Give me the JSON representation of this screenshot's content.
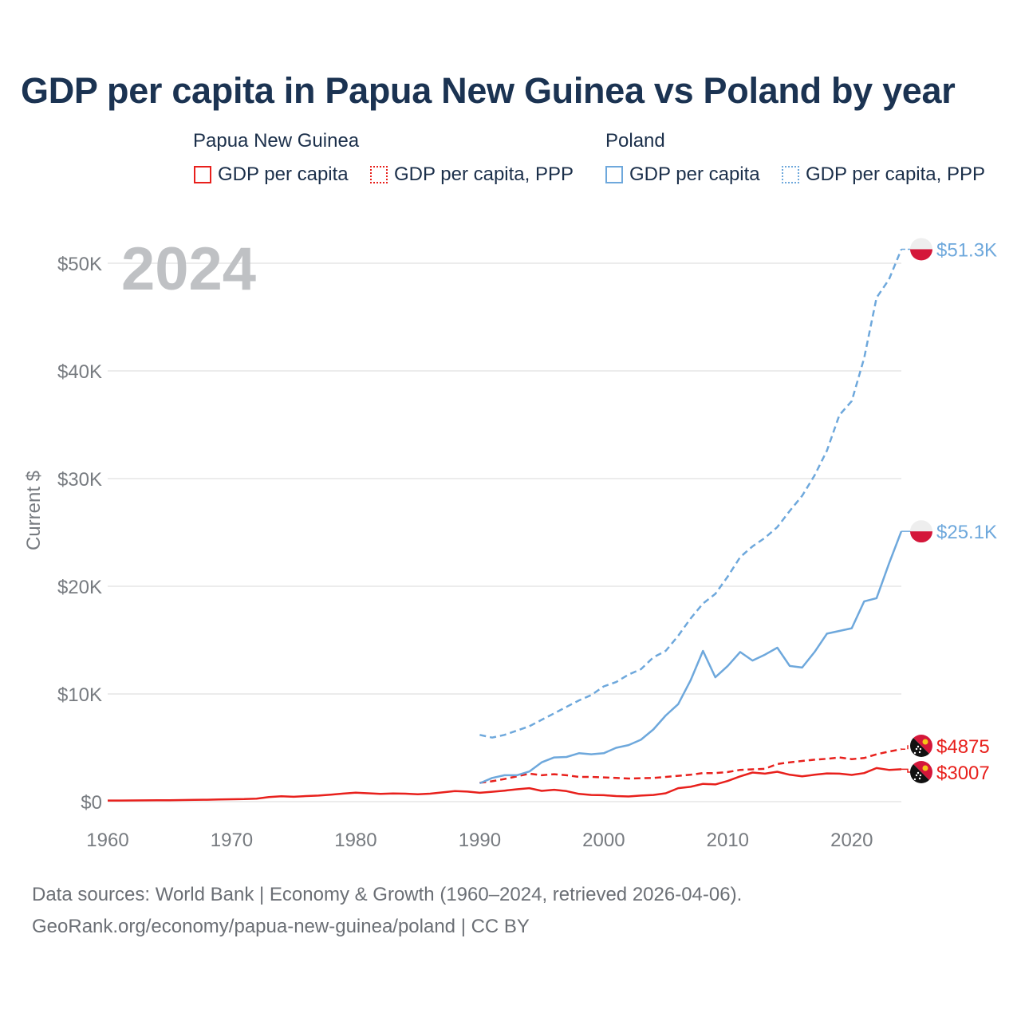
{
  "title": "GDP per capita in Papua New Guinea vs Poland by year",
  "legend": {
    "png_group": "Papua New Guinea",
    "pl_group": "Poland",
    "png_gdp": "GDP per capita",
    "png_ppp": "GDP per capita, PPP",
    "pl_gdp": "GDP per capita",
    "pl_ppp": "GDP per capita, PPP"
  },
  "footer": {
    "line1": "Data sources: World Bank | Economy & Growth (1960–2024, retrieved 2026-04-06).",
    "line2": "GeoRank.org/economy/papua-new-guinea/poland | CC BY"
  },
  "colors": {
    "png": "#e8201c",
    "pl": "#6ea8dc",
    "grid": "#e6e6e6",
    "axis_text": "#777b80",
    "year_watermark": "#bfc1c4"
  },
  "chart_data": {
    "type": "line",
    "title": "GDP per capita in Papua New Guinea vs Poland by year",
    "ylabel": "Current $",
    "xlabel": "",
    "xlim": [
      1960,
      2025
    ],
    "ylim": [
      0,
      52000
    ],
    "current_year": "2024",
    "x_ticks": [
      1960,
      1970,
      1980,
      1990,
      2000,
      2010,
      2020
    ],
    "y_ticks": [
      {
        "value": 0,
        "label": "$0"
      },
      {
        "value": 10000,
        "label": "$10K"
      },
      {
        "value": 20000,
        "label": "$20K"
      },
      {
        "value": 30000,
        "label": "$30K"
      },
      {
        "value": 40000,
        "label": "$40K"
      },
      {
        "value": 50000,
        "label": "$50K"
      }
    ],
    "series": [
      {
        "name": "Papua New Guinea — GDP per capita",
        "color": "png",
        "dash": "solid",
        "end_label": "$3007",
        "points": [
          [
            1960,
            100
          ],
          [
            1961,
            105
          ],
          [
            1962,
            110
          ],
          [
            1963,
            115
          ],
          [
            1964,
            125
          ],
          [
            1965,
            135
          ],
          [
            1966,
            150
          ],
          [
            1967,
            165
          ],
          [
            1968,
            180
          ],
          [
            1969,
            200
          ],
          [
            1970,
            220
          ],
          [
            1971,
            240
          ],
          [
            1972,
            280
          ],
          [
            1973,
            420
          ],
          [
            1974,
            500
          ],
          [
            1975,
            450
          ],
          [
            1976,
            520
          ],
          [
            1977,
            560
          ],
          [
            1978,
            650
          ],
          [
            1979,
            750
          ],
          [
            1980,
            830
          ],
          [
            1981,
            780
          ],
          [
            1982,
            720
          ],
          [
            1983,
            760
          ],
          [
            1984,
            740
          ],
          [
            1985,
            690
          ],
          [
            1986,
            740
          ],
          [
            1987,
            860
          ],
          [
            1988,
            980
          ],
          [
            1989,
            930
          ],
          [
            1990,
            820
          ],
          [
            1991,
            920
          ],
          [
            1992,
            1020
          ],
          [
            1993,
            1150
          ],
          [
            1994,
            1250
          ],
          [
            1995,
            1000
          ],
          [
            1996,
            1100
          ],
          [
            1997,
            980
          ],
          [
            1998,
            720
          ],
          [
            1999,
            620
          ],
          [
            2000,
            600
          ],
          [
            2001,
            520
          ],
          [
            2002,
            480
          ],
          [
            2003,
            560
          ],
          [
            2004,
            620
          ],
          [
            2005,
            780
          ],
          [
            2006,
            1250
          ],
          [
            2007,
            1380
          ],
          [
            2008,
            1650
          ],
          [
            2009,
            1600
          ],
          [
            2010,
            1920
          ],
          [
            2011,
            2350
          ],
          [
            2012,
            2700
          ],
          [
            2013,
            2600
          ],
          [
            2014,
            2780
          ],
          [
            2015,
            2500
          ],
          [
            2016,
            2350
          ],
          [
            2017,
            2500
          ],
          [
            2018,
            2620
          ],
          [
            2019,
            2600
          ],
          [
            2020,
            2480
          ],
          [
            2021,
            2650
          ],
          [
            2022,
            3120
          ],
          [
            2023,
            2950
          ],
          [
            2024,
            3007
          ]
        ]
      },
      {
        "name": "Papua New Guinea — GDP per capita, PPP",
        "color": "png",
        "dash": "dashed",
        "end_label": "$4875",
        "points": [
          [
            1990,
            1750
          ],
          [
            1991,
            1900
          ],
          [
            1992,
            2100
          ],
          [
            1993,
            2350
          ],
          [
            1994,
            2600
          ],
          [
            1995,
            2450
          ],
          [
            1996,
            2550
          ],
          [
            1997,
            2450
          ],
          [
            1998,
            2300
          ],
          [
            1999,
            2300
          ],
          [
            2000,
            2250
          ],
          [
            2001,
            2200
          ],
          [
            2002,
            2150
          ],
          [
            2003,
            2180
          ],
          [
            2004,
            2200
          ],
          [
            2005,
            2300
          ],
          [
            2006,
            2400
          ],
          [
            2007,
            2500
          ],
          [
            2008,
            2650
          ],
          [
            2009,
            2650
          ],
          [
            2010,
            2750
          ],
          [
            2011,
            2950
          ],
          [
            2012,
            3000
          ],
          [
            2013,
            3050
          ],
          [
            2014,
            3500
          ],
          [
            2015,
            3650
          ],
          [
            2016,
            3780
          ],
          [
            2017,
            3900
          ],
          [
            2018,
            3980
          ],
          [
            2019,
            4100
          ],
          [
            2020,
            3950
          ],
          [
            2021,
            4050
          ],
          [
            2022,
            4400
          ],
          [
            2023,
            4650
          ],
          [
            2024,
            4875
          ]
        ]
      },
      {
        "name": "Poland — GDP per capita",
        "color": "pl",
        "dash": "solid",
        "end_label": "$25.1K",
        "points": [
          [
            1990,
            1700
          ],
          [
            1991,
            2200
          ],
          [
            1992,
            2450
          ],
          [
            1993,
            2450
          ],
          [
            1994,
            2800
          ],
          [
            1995,
            3650
          ],
          [
            1996,
            4100
          ],
          [
            1997,
            4150
          ],
          [
            1998,
            4500
          ],
          [
            1999,
            4400
          ],
          [
            2000,
            4500
          ],
          [
            2001,
            5000
          ],
          [
            2002,
            5250
          ],
          [
            2003,
            5750
          ],
          [
            2004,
            6700
          ],
          [
            2005,
            8000
          ],
          [
            2006,
            9050
          ],
          [
            2007,
            11250
          ],
          [
            2008,
            14000
          ],
          [
            2009,
            11550
          ],
          [
            2010,
            12600
          ],
          [
            2011,
            13900
          ],
          [
            2012,
            13100
          ],
          [
            2013,
            13650
          ],
          [
            2014,
            14300
          ],
          [
            2015,
            12600
          ],
          [
            2016,
            12450
          ],
          [
            2017,
            13900
          ],
          [
            2018,
            15600
          ],
          [
            2019,
            15850
          ],
          [
            2020,
            16100
          ],
          [
            2021,
            18600
          ],
          [
            2022,
            18900
          ],
          [
            2023,
            22100
          ],
          [
            2024,
            25100
          ]
        ]
      },
      {
        "name": "Poland — GDP per capita, PPP",
        "color": "pl",
        "dash": "dashed",
        "end_label": "$51.3K",
        "points": [
          [
            1990,
            6200
          ],
          [
            1991,
            5950
          ],
          [
            1992,
            6200
          ],
          [
            1993,
            6600
          ],
          [
            1994,
            7000
          ],
          [
            1995,
            7600
          ],
          [
            1996,
            8200
          ],
          [
            1997,
            8800
          ],
          [
            1998,
            9400
          ],
          [
            1999,
            9900
          ],
          [
            2000,
            10700
          ],
          [
            2001,
            11100
          ],
          [
            2002,
            11800
          ],
          [
            2003,
            12300
          ],
          [
            2004,
            13400
          ],
          [
            2005,
            14000
          ],
          [
            2006,
            15400
          ],
          [
            2007,
            17000
          ],
          [
            2008,
            18400
          ],
          [
            2009,
            19300
          ],
          [
            2010,
            20900
          ],
          [
            2011,
            22700
          ],
          [
            2012,
            23700
          ],
          [
            2013,
            24500
          ],
          [
            2014,
            25500
          ],
          [
            2015,
            27000
          ],
          [
            2016,
            28400
          ],
          [
            2017,
            30300
          ],
          [
            2018,
            32600
          ],
          [
            2019,
            35900
          ],
          [
            2020,
            37200
          ],
          [
            2021,
            41200
          ],
          [
            2022,
            46800
          ],
          [
            2023,
            48500
          ],
          [
            2024,
            51300
          ]
        ]
      }
    ]
  }
}
